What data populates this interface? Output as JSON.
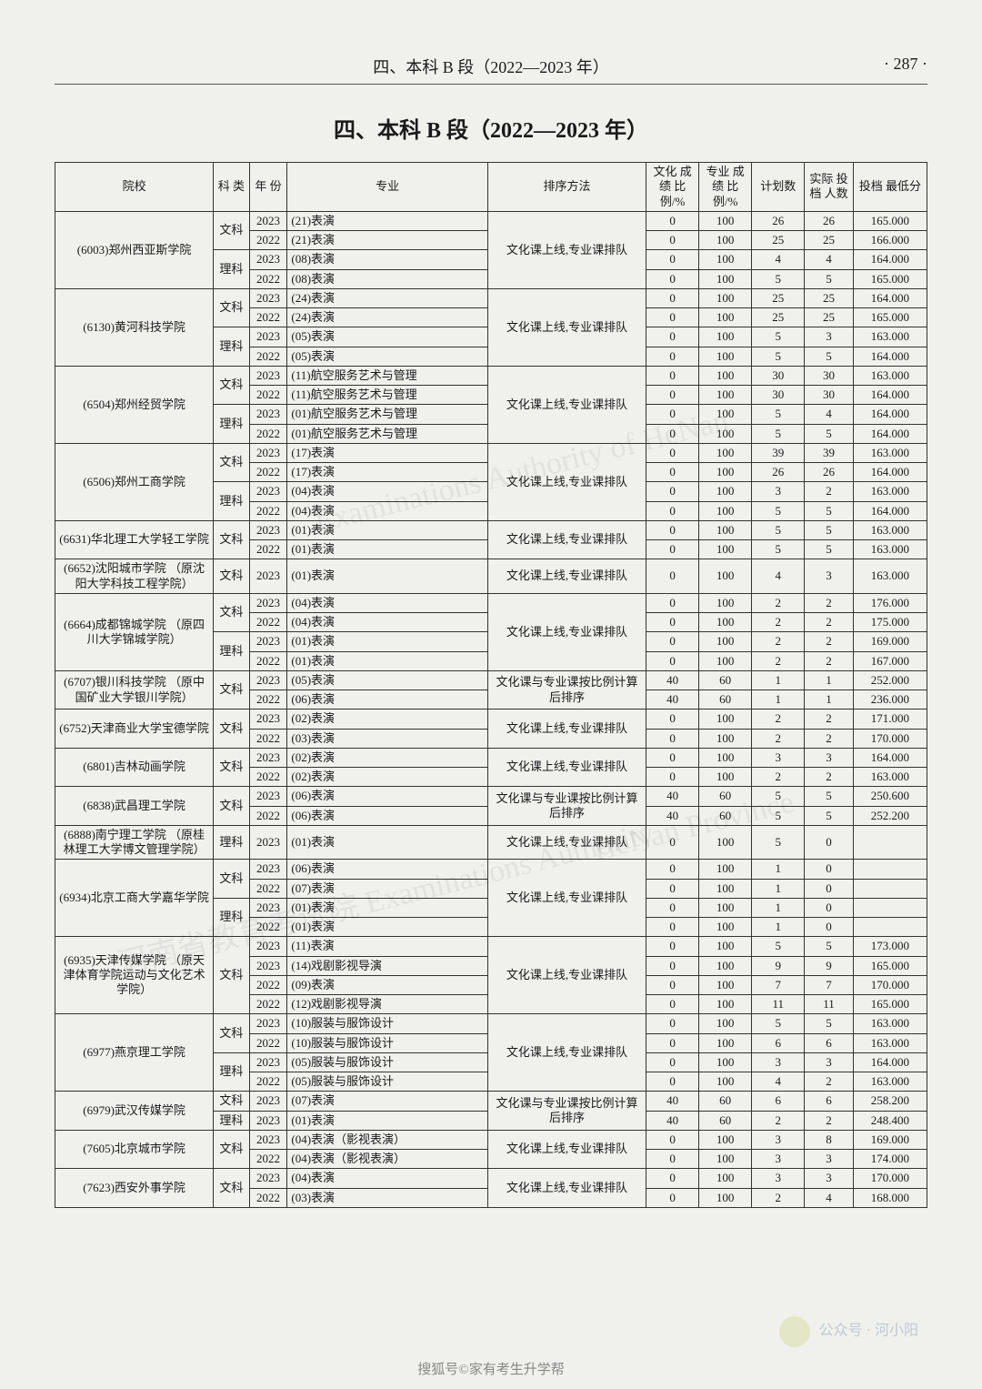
{
  "page": {
    "running_head": "四、本科 B 段（2022—2023 年）",
    "page_number": "· 287 ·",
    "title": "四、本科 B 段（2022—2023 年）",
    "footer_account": "公众号 · 河小阳",
    "footer_credit": "搜狐号©家有考生升学帮"
  },
  "table": {
    "headers": {
      "school": "院校",
      "subject": "科\n类",
      "year": "年\n份",
      "major": "专业",
      "sort": "排序方法",
      "pctA": "文化\n成绩\n比例/%",
      "pctB": "专业\n成绩\n比例/%",
      "plan": "计划数",
      "actual": "实际\n投档\n人数",
      "min": "投档\n最低分"
    },
    "groups": [
      {
        "school": "(6003)郑州西亚斯学院",
        "sort": "文化课上线,专业课排队",
        "subgroups": [
          {
            "subject": "文科",
            "rows": [
              {
                "year": "2023",
                "major": "(21)表演",
                "pctA": "0",
                "pctB": "100",
                "plan": "26",
                "actual": "26",
                "min": "165.000"
              },
              {
                "year": "2022",
                "major": "(21)表演",
                "pctA": "0",
                "pctB": "100",
                "plan": "25",
                "actual": "25",
                "min": "166.000"
              }
            ]
          },
          {
            "subject": "理科",
            "rows": [
              {
                "year": "2023",
                "major": "(08)表演",
                "pctA": "0",
                "pctB": "100",
                "plan": "4",
                "actual": "4",
                "min": "164.000"
              },
              {
                "year": "2022",
                "major": "(08)表演",
                "pctA": "0",
                "pctB": "100",
                "plan": "5",
                "actual": "5",
                "min": "165.000"
              }
            ]
          }
        ]
      },
      {
        "school": "(6130)黄河科技学院",
        "sort": "文化课上线,专业课排队",
        "subgroups": [
          {
            "subject": "文科",
            "rows": [
              {
                "year": "2023",
                "major": "(24)表演",
                "pctA": "0",
                "pctB": "100",
                "plan": "25",
                "actual": "25",
                "min": "164.000"
              },
              {
                "year": "2022",
                "major": "(24)表演",
                "pctA": "0",
                "pctB": "100",
                "plan": "25",
                "actual": "25",
                "min": "165.000"
              }
            ]
          },
          {
            "subject": "理科",
            "rows": [
              {
                "year": "2023",
                "major": "(05)表演",
                "pctA": "0",
                "pctB": "100",
                "plan": "5",
                "actual": "3",
                "min": "163.000"
              },
              {
                "year": "2022",
                "major": "(05)表演",
                "pctA": "0",
                "pctB": "100",
                "plan": "5",
                "actual": "5",
                "min": "164.000"
              }
            ]
          }
        ]
      },
      {
        "school": "(6504)郑州经贸学院",
        "sort": "文化课上线,专业课排队",
        "subgroups": [
          {
            "subject": "文科",
            "rows": [
              {
                "year": "2023",
                "major": "(11)航空服务艺术与管理",
                "pctA": "0",
                "pctB": "100",
                "plan": "30",
                "actual": "30",
                "min": "163.000"
              },
              {
                "year": "2022",
                "major": "(11)航空服务艺术与管理",
                "pctA": "0",
                "pctB": "100",
                "plan": "30",
                "actual": "30",
                "min": "164.000"
              }
            ]
          },
          {
            "subject": "理科",
            "rows": [
              {
                "year": "2023",
                "major": "(01)航空服务艺术与管理",
                "pctA": "0",
                "pctB": "100",
                "plan": "5",
                "actual": "4",
                "min": "164.000"
              },
              {
                "year": "2022",
                "major": "(01)航空服务艺术与管理",
                "pctA": "0",
                "pctB": "100",
                "plan": "5",
                "actual": "5",
                "min": "164.000"
              }
            ]
          }
        ]
      },
      {
        "school": "(6506)郑州工商学院",
        "sort": "文化课上线,专业课排队",
        "subgroups": [
          {
            "subject": "文科",
            "rows": [
              {
                "year": "2023",
                "major": "(17)表演",
                "pctA": "0",
                "pctB": "100",
                "plan": "39",
                "actual": "39",
                "min": "163.000"
              },
              {
                "year": "2022",
                "major": "(17)表演",
                "pctA": "0",
                "pctB": "100",
                "plan": "26",
                "actual": "26",
                "min": "164.000"
              }
            ]
          },
          {
            "subject": "理科",
            "rows": [
              {
                "year": "2023",
                "major": "(04)表演",
                "pctA": "0",
                "pctB": "100",
                "plan": "3",
                "actual": "2",
                "min": "163.000"
              },
              {
                "year": "2022",
                "major": "(04)表演",
                "pctA": "0",
                "pctB": "100",
                "plan": "5",
                "actual": "5",
                "min": "164.000"
              }
            ]
          }
        ]
      },
      {
        "school": "(6631)华北理工大学轻工学院",
        "sort": "文化课上线,专业课排队",
        "subgroups": [
          {
            "subject": "文科",
            "rows": [
              {
                "year": "2023",
                "major": "(01)表演",
                "pctA": "0",
                "pctB": "100",
                "plan": "5",
                "actual": "5",
                "min": "163.000"
              },
              {
                "year": "2022",
                "major": "(01)表演",
                "pctA": "0",
                "pctB": "100",
                "plan": "5",
                "actual": "5",
                "min": "163.000"
              }
            ]
          }
        ]
      },
      {
        "school": "(6652)沈阳城市学院\n（原沈阳大学科技工程学院）",
        "sort": "文化课上线,专业课排队",
        "subgroups": [
          {
            "subject": "文科",
            "rows": [
              {
                "year": "2023",
                "major": "(01)表演",
                "pctA": "0",
                "pctB": "100",
                "plan": "4",
                "actual": "3",
                "min": "163.000"
              }
            ]
          }
        ]
      },
      {
        "school": "(6664)成都锦城学院\n（原四川大学锦城学院）",
        "sort": "文化课上线,专业课排队",
        "subgroups": [
          {
            "subject": "文科",
            "rows": [
              {
                "year": "2023",
                "major": "(04)表演",
                "pctA": "0",
                "pctB": "100",
                "plan": "2",
                "actual": "2",
                "min": "176.000"
              },
              {
                "year": "2022",
                "major": "(04)表演",
                "pctA": "0",
                "pctB": "100",
                "plan": "2",
                "actual": "2",
                "min": "175.000"
              }
            ]
          },
          {
            "subject": "理科",
            "rows": [
              {
                "year": "2023",
                "major": "(01)表演",
                "pctA": "0",
                "pctB": "100",
                "plan": "2",
                "actual": "2",
                "min": "169.000"
              },
              {
                "year": "2022",
                "major": "(01)表演",
                "pctA": "0",
                "pctB": "100",
                "plan": "2",
                "actual": "2",
                "min": "167.000"
              }
            ]
          }
        ]
      },
      {
        "school": "(6707)银川科技学院\n（原中国矿业大学银川学院）",
        "sort": "文化课与专业课按比例计算后排序",
        "subgroups": [
          {
            "subject": "文科",
            "rows": [
              {
                "year": "2023",
                "major": "(05)表演",
                "pctA": "40",
                "pctB": "60",
                "plan": "1",
                "actual": "1",
                "min": "252.000"
              },
              {
                "year": "2022",
                "major": "(06)表演",
                "pctA": "40",
                "pctB": "60",
                "plan": "1",
                "actual": "1",
                "min": "236.000"
              }
            ]
          }
        ]
      },
      {
        "school": "(6752)天津商业大学宝德学院",
        "sort": "文化课上线,专业课排队",
        "subgroups": [
          {
            "subject": "文科",
            "rows": [
              {
                "year": "2023",
                "major": "(02)表演",
                "pctA": "0",
                "pctB": "100",
                "plan": "2",
                "actual": "2",
                "min": "171.000"
              },
              {
                "year": "2022",
                "major": "(03)表演",
                "pctA": "0",
                "pctB": "100",
                "plan": "2",
                "actual": "2",
                "min": "170.000"
              }
            ]
          }
        ]
      },
      {
        "school": "(6801)吉林动画学院",
        "sort": "文化课上线,专业课排队",
        "subgroups": [
          {
            "subject": "文科",
            "rows": [
              {
                "year": "2023",
                "major": "(02)表演",
                "pctA": "0",
                "pctB": "100",
                "plan": "3",
                "actual": "3",
                "min": "164.000"
              },
              {
                "year": "2022",
                "major": "(02)表演",
                "pctA": "0",
                "pctB": "100",
                "plan": "2",
                "actual": "2",
                "min": "163.000"
              }
            ]
          }
        ]
      },
      {
        "school": "(6838)武昌理工学院",
        "sort": "文化课与专业课按比例计算后排序",
        "subgroups": [
          {
            "subject": "文科",
            "rows": [
              {
                "year": "2023",
                "major": "(06)表演",
                "pctA": "40",
                "pctB": "60",
                "plan": "5",
                "actual": "5",
                "min": "250.600"
              },
              {
                "year": "2022",
                "major": "(06)表演",
                "pctA": "40",
                "pctB": "60",
                "plan": "5",
                "actual": "5",
                "min": "252.200"
              }
            ]
          }
        ]
      },
      {
        "school": "(6888)南宁理工学院\n（原桂林理工大学博文管理学院）",
        "sort": "文化课上线,专业课排队",
        "subgroups": [
          {
            "subject": "理科",
            "rows": [
              {
                "year": "2023",
                "major": "(01)表演",
                "pctA": "0",
                "pctB": "100",
                "plan": "5",
                "actual": "0",
                "min": ""
              }
            ]
          }
        ]
      },
      {
        "school": "(6934)北京工商大学嘉华学院",
        "sort": "文化课上线,专业课排队",
        "subgroups": [
          {
            "subject": "文科",
            "rows": [
              {
                "year": "2023",
                "major": "(06)表演",
                "pctA": "0",
                "pctB": "100",
                "plan": "1",
                "actual": "0",
                "min": ""
              },
              {
                "year": "2022",
                "major": "(07)表演",
                "pctA": "0",
                "pctB": "100",
                "plan": "1",
                "actual": "0",
                "min": ""
              }
            ]
          },
          {
            "subject": "理科",
            "rows": [
              {
                "year": "2023",
                "major": "(01)表演",
                "pctA": "0",
                "pctB": "100",
                "plan": "1",
                "actual": "0",
                "min": ""
              },
              {
                "year": "2022",
                "major": "(01)表演",
                "pctA": "0",
                "pctB": "100",
                "plan": "1",
                "actual": "0",
                "min": ""
              }
            ]
          }
        ]
      },
      {
        "school": "(6935)天津传媒学院\n（原天津体育学院运动与文化艺术学院）",
        "sort": "文化课上线,专业课排队",
        "subgroups": [
          {
            "subject": "文科",
            "rows": [
              {
                "year": "2023",
                "major": "(11)表演",
                "pctA": "0",
                "pctB": "100",
                "plan": "5",
                "actual": "5",
                "min": "173.000"
              },
              {
                "year": "2023",
                "major": "(14)戏剧影视导演",
                "pctA": "0",
                "pctB": "100",
                "plan": "9",
                "actual": "9",
                "min": "165.000"
              },
              {
                "year": "2022",
                "major": "(09)表演",
                "pctA": "0",
                "pctB": "100",
                "plan": "7",
                "actual": "7",
                "min": "170.000"
              },
              {
                "year": "2022",
                "major": "(12)戏剧影视导演",
                "pctA": "0",
                "pctB": "100",
                "plan": "11",
                "actual": "11",
                "min": "165.000"
              }
            ]
          }
        ]
      },
      {
        "school": "(6977)燕京理工学院",
        "sort": "文化课上线,专业课排队",
        "subgroups": [
          {
            "subject": "文科",
            "rows": [
              {
                "year": "2023",
                "major": "(10)服装与服饰设计",
                "pctA": "0",
                "pctB": "100",
                "plan": "5",
                "actual": "5",
                "min": "163.000"
              },
              {
                "year": "2022",
                "major": "(10)服装与服饰设计",
                "pctA": "0",
                "pctB": "100",
                "plan": "6",
                "actual": "6",
                "min": "163.000"
              }
            ]
          },
          {
            "subject": "理科",
            "rows": [
              {
                "year": "2023",
                "major": "(05)服装与服饰设计",
                "pctA": "0",
                "pctB": "100",
                "plan": "3",
                "actual": "3",
                "min": "164.000"
              },
              {
                "year": "2022",
                "major": "(05)服装与服饰设计",
                "pctA": "0",
                "pctB": "100",
                "plan": "4",
                "actual": "2",
                "min": "163.000"
              }
            ]
          }
        ]
      },
      {
        "school": "(6979)武汉传媒学院",
        "sort": "文化课与专业课按比例计算后排序",
        "subgroups": [
          {
            "subject": "文科",
            "rows": [
              {
                "year": "2023",
                "major": "(07)表演",
                "pctA": "40",
                "pctB": "60",
                "plan": "6",
                "actual": "6",
                "min": "258.200"
              }
            ]
          },
          {
            "subject": "理科",
            "rows": [
              {
                "year": "2023",
                "major": "(01)表演",
                "pctA": "40",
                "pctB": "60",
                "plan": "2",
                "actual": "2",
                "min": "248.400"
              }
            ]
          }
        ]
      },
      {
        "school": "(7605)北京城市学院",
        "sort": "文化课上线,专业课排队",
        "subgroups": [
          {
            "subject": "文科",
            "rows": [
              {
                "year": "2023",
                "major": "(04)表演（影视表演）",
                "pctA": "0",
                "pctB": "100",
                "plan": "3",
                "actual": "8",
                "min": "169.000"
              },
              {
                "year": "2022",
                "major": "(04)表演（影视表演）",
                "pctA": "0",
                "pctB": "100",
                "plan": "3",
                "actual": "3",
                "min": "174.000"
              }
            ]
          }
        ]
      },
      {
        "school": "(7623)西安外事学院",
        "sort": "文化课上线,专业课排队",
        "subgroups": [
          {
            "subject": "文科",
            "rows": [
              {
                "year": "2023",
                "major": "(04)表演",
                "pctA": "0",
                "pctB": "100",
                "plan": "3",
                "actual": "3",
                "min": "170.000"
              },
              {
                "year": "2022",
                "major": "(03)表演",
                "pctA": "0",
                "pctB": "100",
                "plan": "2",
                "actual": "4",
                "min": "168.000"
              }
            ]
          }
        ]
      }
    ]
  }
}
